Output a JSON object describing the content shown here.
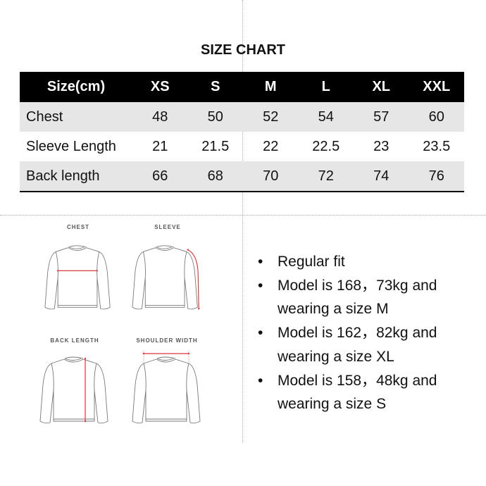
{
  "title": "SIZE CHART",
  "table": {
    "headers": [
      "Size(cm)",
      "XS",
      "S",
      "M",
      "L",
      "XL",
      "XXL"
    ],
    "rows": [
      {
        "label": "Chest",
        "values": [
          "48",
          "50",
          "52",
          "54",
          "57",
          "60"
        ]
      },
      {
        "label": "Sleeve Length",
        "values": [
          "21",
          "21.5",
          "22",
          "22.5",
          "23",
          "23.5"
        ]
      },
      {
        "label": "Back length",
        "values": [
          "66",
          "68",
          "70",
          "72",
          "74",
          "76"
        ]
      }
    ]
  },
  "diagrams": [
    {
      "label": "CHEST",
      "icon": "sweater-chest-icon"
    },
    {
      "label": "SLEEVE",
      "icon": "sweater-sleeve-icon"
    },
    {
      "label": "BACK LENGTH",
      "icon": "sweater-back-length-icon"
    },
    {
      "label": "SHOULDER WIDTH",
      "icon": "sweater-shoulder-width-icon"
    }
  ],
  "measure_color": "#d9363e",
  "notes": [
    {
      "bullet": "•",
      "text": "Regular fit"
    },
    {
      "bullet": "•",
      "text": "Model is 168，73kg and wearing a size M"
    },
    {
      "bullet": "•",
      "text": "Model is 162，82kg and wearing a size XL"
    },
    {
      "bullet": "•",
      "text": "Model is 158，48kg and wearing a size S"
    }
  ]
}
